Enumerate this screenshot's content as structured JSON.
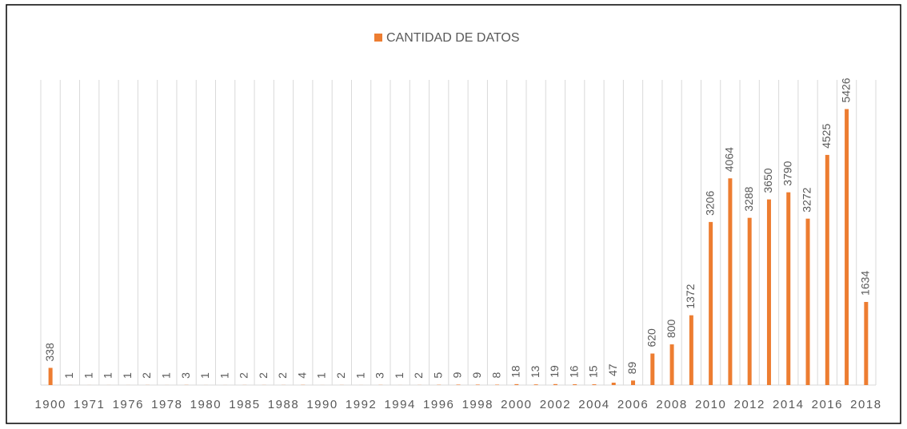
{
  "chart_data": {
    "type": "bar",
    "categories": [
      "1900",
      null,
      "1971",
      null,
      "1976",
      null,
      "1978",
      null,
      "1980",
      null,
      "1985",
      null,
      "1988",
      null,
      "1990",
      null,
      "1992",
      null,
      "1994",
      null,
      "1996",
      null,
      "1998",
      null,
      "2000",
      null,
      "2002",
      null,
      "2004",
      null,
      "2006",
      null,
      "2008",
      null,
      "2010",
      null,
      "2012",
      null,
      "2014",
      null,
      "2016",
      null,
      "2018"
    ],
    "series": [
      {
        "name": "CANTIDAD DE DATOS",
        "color": "#ed7d31",
        "values": [
          338,
          1,
          1,
          1,
          1,
          2,
          1,
          3,
          1,
          1,
          2,
          2,
          2,
          4,
          1,
          2,
          1,
          3,
          1,
          2,
          5,
          9,
          9,
          8,
          18,
          13,
          19,
          16,
          15,
          47,
          89,
          620,
          800,
          1372,
          3206,
          4064,
          3288,
          3650,
          3790,
          3272,
          4525,
          5426,
          1634
        ]
      }
    ],
    "ylim": [
      0,
      6000
    ],
    "legend": "top"
  }
}
